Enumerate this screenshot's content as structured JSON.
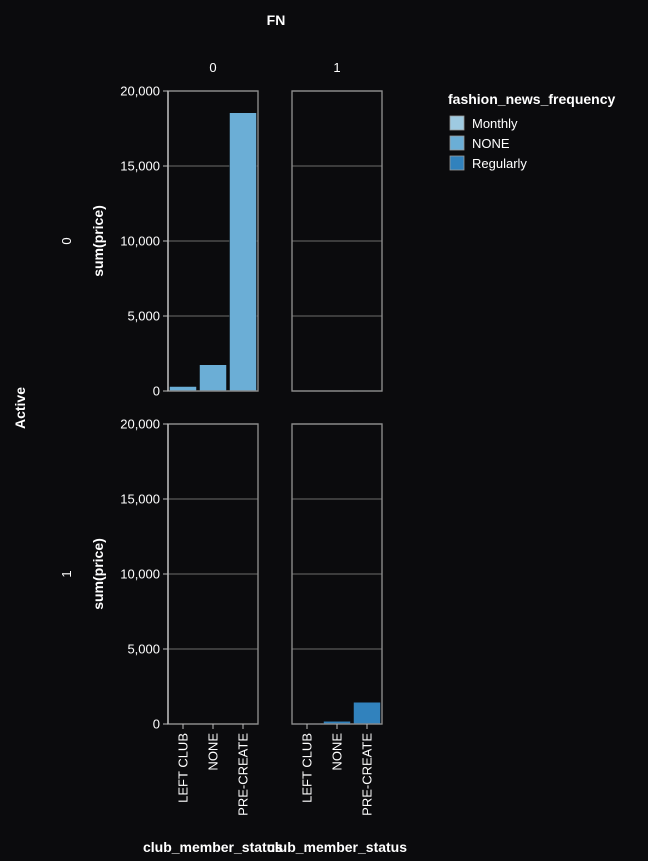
{
  "chart_data": {
    "type": "bar",
    "column_field": "FN",
    "row_field": "Active",
    "columns": [
      "0",
      "1"
    ],
    "rows": [
      "0",
      "1"
    ],
    "xlabel": "club_member_status",
    "ylabel": "sum(price)",
    "categories": [
      "LEFT CLUB",
      "NONE",
      "PRE-CREATE"
    ],
    "yticks": [
      "0",
      "5,000",
      "10,000",
      "15,000",
      "20,000"
    ],
    "ylim": [
      0,
      20000
    ],
    "grid": true,
    "legend": {
      "title": "fashion_news_frequency",
      "placement": "top-right",
      "entries": [
        {
          "name": "Monthly",
          "color": "#9ecae1"
        },
        {
          "name": "NONE",
          "color": "#6baed6"
        },
        {
          "name": "Regularly",
          "color": "#3182bd"
        }
      ]
    },
    "facets": [
      {
        "row": "0",
        "col": "0",
        "bars": [
          {
            "category": "LEFT CLUB",
            "series": "NONE",
            "value": 300
          },
          {
            "category": "NONE",
            "series": "NONE",
            "value": 1750
          },
          {
            "category": "PRE-CREATE",
            "series": "NONE",
            "value": 18550
          }
        ]
      },
      {
        "row": "0",
        "col": "1",
        "bars": [
          {
            "category": "PRE-CREATE",
            "series": "NONE",
            "value": 40
          }
        ]
      },
      {
        "row": "1",
        "col": "0",
        "bars": []
      },
      {
        "row": "1",
        "col": "1",
        "bars": [
          {
            "category": "LEFT CLUB",
            "series": "Regularly",
            "value": 30
          },
          {
            "category": "NONE",
            "series": "Regularly",
            "value": 180
          },
          {
            "category": "PRE-CREATE",
            "series": "Regularly",
            "value": 1450
          }
        ]
      }
    ]
  }
}
